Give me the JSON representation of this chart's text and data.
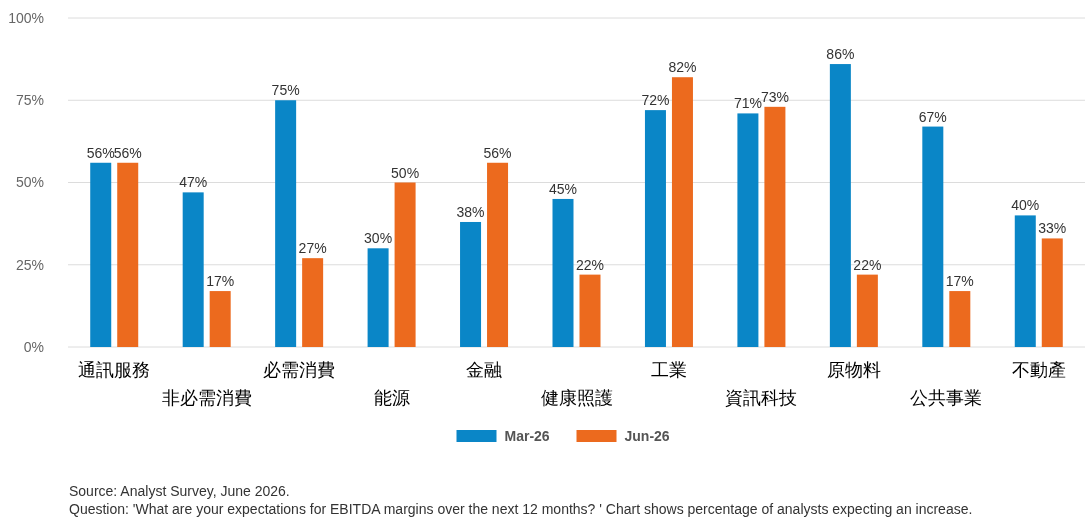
{
  "chart_data": {
    "type": "bar",
    "categories": [
      "通訊服務",
      "非必需消費",
      "必需消費",
      "能源",
      "金融",
      "健康照護",
      "工業",
      "資訊科技",
      "原物料",
      "公共事業",
      "不動產"
    ],
    "series": [
      {
        "name": "Mar-26",
        "color": "#0a86c7",
        "values": [
          56,
          47,
          75,
          30,
          38,
          45,
          72,
          71,
          86,
          67,
          40
        ],
        "value_labels": [
          "56%",
          "47%",
          "75%",
          "30%",
          "38%",
          "45%",
          "72%",
          "71%",
          "86%",
          "67%",
          "40%"
        ]
      },
      {
        "name": "Jun-26",
        "color": "#ec6a1e",
        "values": [
          56,
          17,
          27,
          50,
          56,
          22,
          82,
          73,
          22,
          17,
          33
        ],
        "value_labels": [
          "56%",
          "17%",
          "27%",
          "50%",
          "56%",
          "22%",
          "82%",
          "73%",
          "22%",
          "17%",
          "33%"
        ]
      }
    ],
    "ylim": [
      0,
      100
    ],
    "yticks": [
      {
        "value": 0,
        "label": "0%"
      },
      {
        "value": 25,
        "label": "25%"
      },
      {
        "value": 50,
        "label": "50%"
      },
      {
        "value": 75,
        "label": "75%"
      },
      {
        "value": 100,
        "label": "100%"
      }
    ],
    "grid": "y",
    "legend": "bottom",
    "annotations": [
      "Source: Analyst Survey, June 2026.",
      "Question: 'What are your expectations for EBITDA margins over the next 12 months? ' Chart shows percentage of analysts expecting an increase."
    ]
  }
}
